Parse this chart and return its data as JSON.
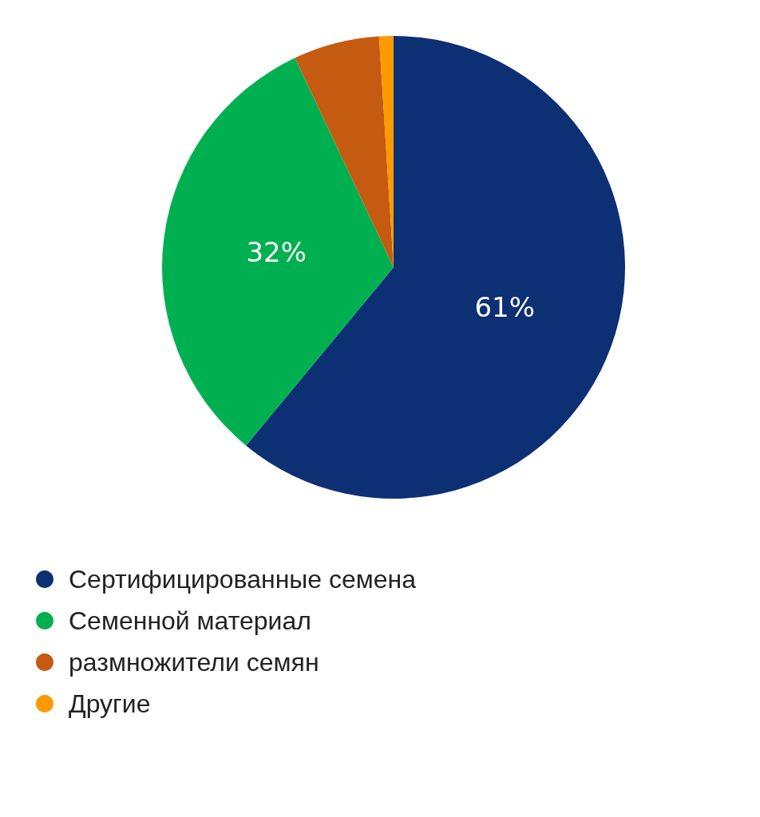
{
  "chart_data": {
    "type": "pie",
    "categories": [
      "Сертифицированные семена",
      "Семенной материал",
      "размножители семян",
      "Другие"
    ],
    "values": [
      61,
      32,
      6,
      1
    ],
    "colors": [
      "#0d2f74",
      "#00b050",
      "#c55a11",
      "#ff9900"
    ],
    "value_labels": [
      "61%",
      "32%",
      null,
      null
    ],
    "legend": "bottom left"
  }
}
